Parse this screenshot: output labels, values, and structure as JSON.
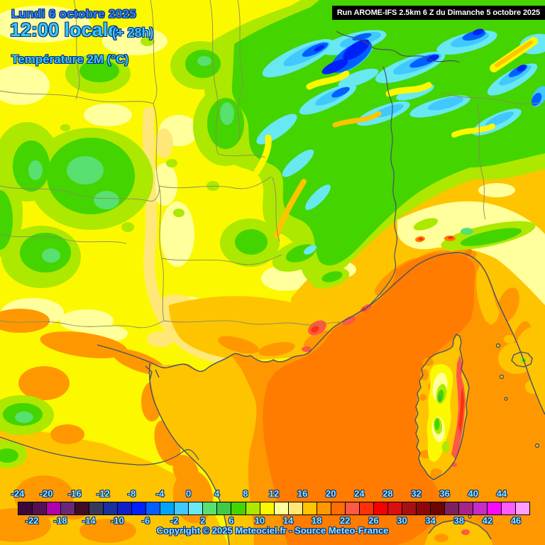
{
  "header": {
    "date_line": "Lundi 6 octobre 2025",
    "time_line": "12:00 locale",
    "time_offset": "(+ 28h)",
    "variable_line": "Température 2M (°C)"
  },
  "run_bar": {
    "label": "Run AROME-IFS 2.5km 6 Z du Dimanche 5 octobre 2025"
  },
  "footer": {
    "copyright": "Copyright © 2025 Meteociel.fr - Source Meteo-France"
  },
  "legend": {
    "unit": "°C",
    "top_labels": [
      "-24",
      "-20",
      "-16",
      "-12",
      "-8",
      "-4",
      "0",
      "4",
      "8",
      "12",
      "16",
      "20",
      "24",
      "28",
      "32",
      "36",
      "40",
      "44"
    ],
    "bottom_labels": [
      "-22",
      "-18",
      "-14",
      "-10",
      "-6",
      "-2",
      "2",
      "6",
      "10",
      "14",
      "18",
      "22",
      "26",
      "30",
      "34",
      "38",
      "42",
      "46"
    ],
    "colors": [
      "#3C083C",
      "#541054",
      "#B000B0",
      "#682878",
      "#400C28",
      "#38385C",
      "#1830A0",
      "#1020C8",
      "#0020FF",
      "#0060FF",
      "#00A4FF",
      "#40C8FF",
      "#68E8F0",
      "#58E070",
      "#40C848",
      "#44D400",
      "#ACE800",
      "#FCF800",
      "#FFFF9C",
      "#FFE878",
      "#FFC400",
      "#FF9800",
      "#FF6C00",
      "#FF5844",
      "#FF3008",
      "#F80000",
      "#D81010",
      "#A81010",
      "#8C0808",
      "#6C0404",
      "#7E2060",
      "#A62488",
      "#C62CC6",
      "#FA0AFA",
      "#FF5CFF",
      "#FF9EFF"
    ],
    "label_color": "#8FE9FF"
  },
  "map_palette": {
    "yellow": "#FCF800",
    "pale_yellow": "#FFFF9C",
    "light_gold": "#FFE878",
    "gold": "#FFC400",
    "orange": "#FF9800",
    "warm_orange": "#FF7C00",
    "salmon": "#FF5844",
    "hot_red": "#FF3008",
    "chartreuse": "#ACE800",
    "green": "#44D400",
    "spring_green": "#58E070",
    "deep_green": "#30C040",
    "cyan": "#68E8F0",
    "sky_blue": "#40C8FF",
    "blue": "#0060FF",
    "deep_blue": "#0020F8",
    "coast_line": "#44506A",
    "border_line": "#8A8A60"
  }
}
